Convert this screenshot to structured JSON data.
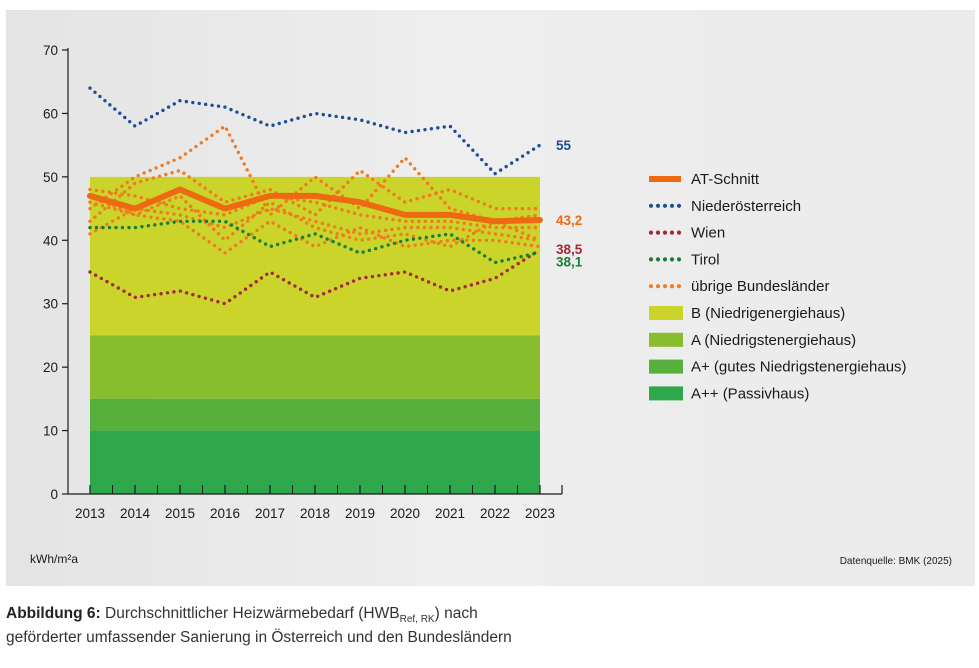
{
  "chart_data": {
    "type": "line",
    "ylabel_unit": "kWh/m²a",
    "ylim": [
      0,
      70
    ],
    "yticks": [
      0,
      10,
      20,
      30,
      40,
      50,
      60,
      70
    ],
    "x": [
      "2013",
      "2014",
      "2015",
      "2016",
      "2017",
      "2018",
      "2019",
      "2020",
      "2021",
      "2022",
      "2023"
    ],
    "bands": [
      {
        "name": "B (Niedrigenergiehaus)",
        "from": 25,
        "to": 50,
        "color": "#cbd42b"
      },
      {
        "name": "A (Niedrigstenergiehaus)",
        "from": 15,
        "to": 25,
        "color": "#88bd2e"
      },
      {
        "name": "A+ (gutes Niedrigstenergiehaus)",
        "from": 10,
        "to": 15,
        "color": "#57b03c"
      },
      {
        "name": "A++ (Passivhaus)",
        "from": 0,
        "to": 10,
        "color": "#2ea84a"
      }
    ],
    "series": [
      {
        "name": "Niederösterreich",
        "color": "#1e4f96",
        "style": "dotted",
        "values": [
          64,
          58,
          62,
          61,
          58,
          60,
          59,
          57,
          58,
          50.5,
          55
        ],
        "end_label": "55"
      },
      {
        "name": "Wien",
        "color": "#a32a35",
        "style": "dotted",
        "values": [
          35,
          31,
          32,
          30,
          35,
          31,
          34,
          35,
          32,
          34,
          38.5
        ],
        "end_label": "38,5"
      },
      {
        "name": "Tirol",
        "color": "#1a7d36",
        "style": "dotted",
        "values": [
          42,
          42,
          43,
          43,
          39,
          41,
          38,
          40,
          41,
          36.5,
          38.1
        ],
        "end_label": "38,1"
      },
      {
        "name": "übrige Bundesländer",
        "color": "#f07b20",
        "style": "dotted",
        "values": [
          48,
          47,
          45,
          44,
          47,
          46,
          44,
          43,
          43,
          42,
          42
        ],
        "end_label": ""
      },
      {
        "name": "übrige Bundesländer",
        "color": "#f07b20",
        "style": "dotted",
        "values": [
          45,
          50,
          53,
          58,
          44,
          50,
          45,
          53,
          45,
          43,
          40
        ],
        "end_label": ""
      },
      {
        "name": "übrige Bundesländer",
        "color": "#f07b20",
        "style": "dotted",
        "values": [
          43,
          49,
          51,
          46,
          48,
          44,
          51,
          46,
          48,
          45,
          45
        ],
        "end_label": ""
      },
      {
        "name": "übrige Bundesländer",
        "color": "#f07b20",
        "style": "dotted",
        "values": [
          41,
          45,
          44,
          42,
          45,
          43,
          41,
          42,
          42,
          41,
          40
        ],
        "end_label": ""
      },
      {
        "name": "übrige Bundesländer",
        "color": "#f07b20",
        "style": "dotted",
        "values": [
          47,
          44,
          43,
          38,
          43,
          39,
          42,
          39,
          40,
          40,
          39
        ],
        "end_label": ""
      },
      {
        "name": "übrige Bundesländer",
        "color": "#f07b20",
        "style": "dotted",
        "values": [
          46,
          44,
          47,
          40,
          46,
          42,
          40,
          41,
          39,
          43,
          44
        ],
        "end_label": ""
      },
      {
        "name": "AT-Schnitt",
        "color": "#ee6a12",
        "style": "solid",
        "values": [
          47,
          45,
          48,
          45,
          47,
          47,
          46,
          44,
          44,
          43,
          43.2
        ],
        "end_label": "43,2"
      }
    ]
  },
  "legend": [
    {
      "label": "AT-Schnitt",
      "kind": "thick",
      "color": "#ee6a12"
    },
    {
      "label": "Niederösterreich",
      "kind": "dots",
      "color": "#1e4f96"
    },
    {
      "label": "Wien",
      "kind": "dots",
      "color": "#a32a35"
    },
    {
      "label": "Tirol",
      "kind": "dots",
      "color": "#1a7d36"
    },
    {
      "label": "übrige Bundesländer",
      "kind": "dots",
      "color": "#f07b20"
    },
    {
      "label": "B (Niedrigenergiehaus)",
      "kind": "box",
      "color": "#cbd42b"
    },
    {
      "label": "A (Niedrigstenergiehaus)",
      "kind": "box",
      "color": "#88bd2e"
    },
    {
      "label": "A+ (gutes Niedrigstenergiehaus)",
      "kind": "box",
      "color": "#57b03c"
    },
    {
      "label": "A++ (Passivhaus)",
      "kind": "box",
      "color": "#2ea84a"
    }
  ],
  "unit_label": "kWh/m²a",
  "source": "Datenquelle: BMK (2025)",
  "caption": {
    "label": "Abbildung 6:",
    "text_before_sub": " Durchschnittlicher Heizwärmebedarf (HWB",
    "sub": "Ref, RK",
    "text_after_sub": ") nach",
    "line2": "geförderter umfassender Sanierung in Österreich und den Bundesländern"
  }
}
